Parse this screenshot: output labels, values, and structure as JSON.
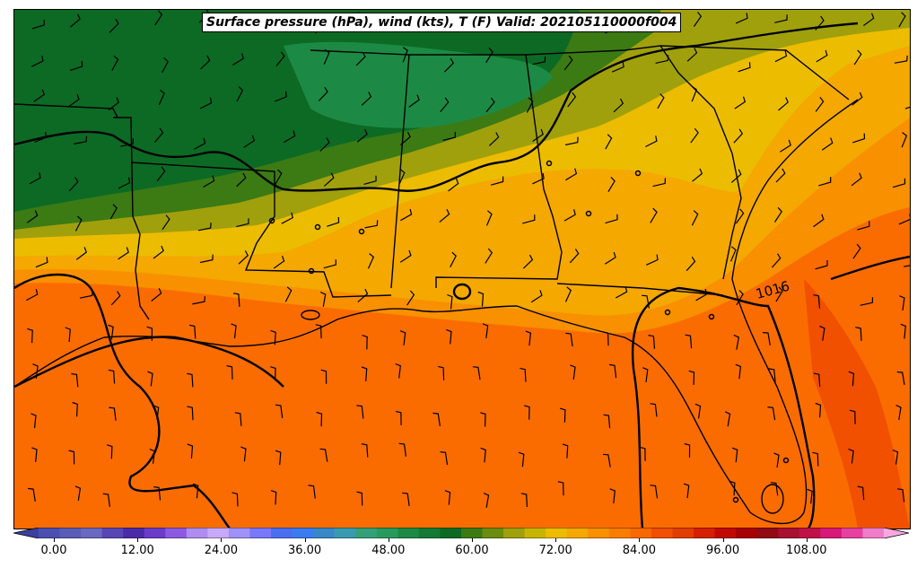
{
  "title": "Surface pressure (hPa), wind (kts), T (F) Valid: 202105110000f004",
  "isobar_label": "1016",
  "colorbar": {
    "min": -6,
    "max": 120,
    "step": 3,
    "ticks": [
      "0.00",
      "12.00",
      "24.00",
      "36.00",
      "48.00",
      "60.00",
      "72.00",
      "84.00",
      "96.00",
      "108.00"
    ],
    "tick_values": [
      0,
      12,
      24,
      36,
      48,
      60,
      72,
      84,
      96,
      108
    ],
    "colors": [
      "#3b3fa0",
      "#4b4fb0",
      "#5a5cb8",
      "#6a68c0",
      "#5846b4",
      "#4b2aa8",
      "#6a3cc8",
      "#8c5ae0",
      "#b08cf0",
      "#c8a8f8",
      "#a090f8",
      "#7878f8",
      "#4a6ef0",
      "#3a7cf0",
      "#3888c8",
      "#3a9ab0",
      "#34a078",
      "#289a5c",
      "#1c8a44",
      "#137a34",
      "#0c6a24",
      "#3c7a14",
      "#6c8c10",
      "#a0a00c",
      "#c8b400",
      "#ecbc00",
      "#f4a800",
      "#f89000",
      "#fa7c00",
      "#f86800",
      "#f05000",
      "#e23c00",
      "#d42000",
      "#c00a00",
      "#a80000",
      "#900a14",
      "#a81030",
      "#c01048",
      "#d81878",
      "#e840a0",
      "#f07cc8",
      "#f8a8e0"
    ]
  }
}
